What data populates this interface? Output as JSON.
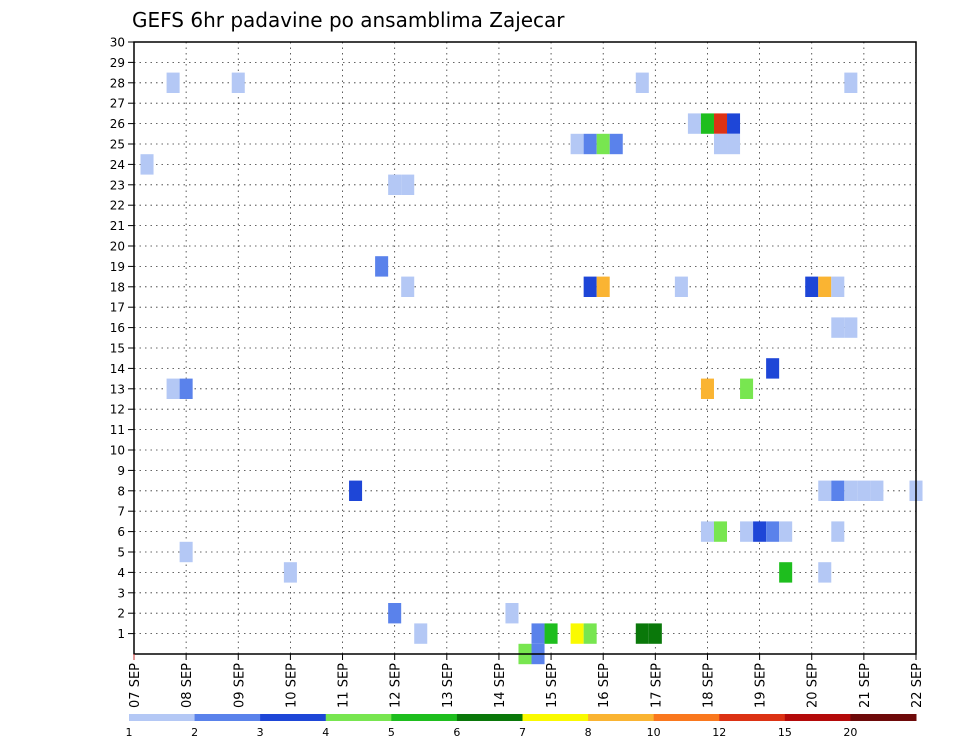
{
  "chart_data": {
    "type": "heatmap",
    "title": "GEFS 6hr padavine po ansamblima Zajecar",
    "xlabel": "",
    "ylabel": "",
    "y_range": [
      0,
      30
    ],
    "y_ticks": [
      "1",
      "2",
      "3",
      "4",
      "5",
      "6",
      "7",
      "8",
      "9",
      "10",
      "11",
      "12",
      "13",
      "14",
      "15",
      "16",
      "17",
      "18",
      "19",
      "20",
      "21",
      "22",
      "23",
      "24",
      "25",
      "26",
      "27",
      "28",
      "29",
      "30"
    ],
    "x_range_days": [
      0,
      15
    ],
    "x_ticks": [
      "07 SEP",
      "08 SEP",
      "09 SEP",
      "10 SEP",
      "11 SEP",
      "12 SEP",
      "13 SEP",
      "14 SEP",
      "15 SEP",
      "16 SEP",
      "17 SEP",
      "18 SEP",
      "19 SEP",
      "20 SEP",
      "21 SEP",
      "22 SEP"
    ],
    "grid": true,
    "legend": {
      "placement": "bottom",
      "labels": [
        "1",
        "2",
        "3",
        "4",
        "5",
        "6",
        "7",
        "8",
        "10",
        "12",
        "15",
        "20"
      ],
      "colors": [
        "#b4c8f5",
        "#5a82eb",
        "#1e46d7",
        "#78e650",
        "#1ebe1e",
        "#0a780a",
        "#fafa00",
        "#fab432",
        "#fa781e",
        "#dc3214",
        "#b40a0a",
        "#6e0a0a"
      ]
    },
    "cells": [
      {
        "day": 0.25,
        "member": 24,
        "color": "#b4c8f5"
      },
      {
        "day": 0.75,
        "member": 28,
        "color": "#b4c8f5"
      },
      {
        "day": 0.75,
        "member": 13,
        "color": "#b4c8f5"
      },
      {
        "day": 1.0,
        "member": 13,
        "color": "#5a82eb"
      },
      {
        "day": 1.0,
        "member": 5,
        "color": "#b4c8f5"
      },
      {
        "day": 2.0,
        "member": 28,
        "color": "#b4c8f5"
      },
      {
        "day": 3.0,
        "member": 4,
        "color": "#b4c8f5"
      },
      {
        "day": 4.25,
        "member": 8,
        "color": "#1e46d7"
      },
      {
        "day": 4.75,
        "member": 19,
        "color": "#5a82eb"
      },
      {
        "day": 5.0,
        "member": 23,
        "color": "#b4c8f5"
      },
      {
        "day": 5.25,
        "member": 23,
        "color": "#b4c8f5"
      },
      {
        "day": 5.0,
        "member": 2,
        "color": "#5a82eb"
      },
      {
        "day": 5.25,
        "member": 18,
        "color": "#b4c8f5"
      },
      {
        "day": 5.5,
        "member": 1,
        "color": "#b4c8f5"
      },
      {
        "day": 7.25,
        "member": 2,
        "color": "#b4c8f5"
      },
      {
        "day": 7.5,
        "member": 0,
        "color": "#78e650"
      },
      {
        "day": 7.75,
        "member": 1,
        "color": "#5a82eb"
      },
      {
        "day": 7.75,
        "member": 0,
        "color": "#5a82eb"
      },
      {
        "day": 8.0,
        "member": 1,
        "color": "#1ebe1e"
      },
      {
        "day": 8.5,
        "member": 25,
        "color": "#b4c8f5"
      },
      {
        "day": 8.5,
        "member": 1,
        "color": "#fafa00"
      },
      {
        "day": 8.75,
        "member": 25,
        "color": "#5a82eb"
      },
      {
        "day": 8.75,
        "member": 18,
        "color": "#1e46d7"
      },
      {
        "day": 8.75,
        "member": 1,
        "color": "#78e650"
      },
      {
        "day": 9.0,
        "member": 25,
        "color": "#78e650"
      },
      {
        "day": 9.0,
        "member": 18,
        "color": "#fab432"
      },
      {
        "day": 9.25,
        "member": 25,
        "color": "#5a82eb"
      },
      {
        "day": 9.75,
        "member": 28,
        "color": "#b4c8f5"
      },
      {
        "day": 9.75,
        "member": 1,
        "color": "#0a780a"
      },
      {
        "day": 10.0,
        "member": 1,
        "color": "#0a780a"
      },
      {
        "day": 10.5,
        "member": 18,
        "color": "#b4c8f5"
      },
      {
        "day": 10.75,
        "member": 26,
        "color": "#b4c8f5"
      },
      {
        "day": 11.0,
        "member": 26,
        "color": "#1ebe1e"
      },
      {
        "day": 11.0,
        "member": 13,
        "color": "#fab432"
      },
      {
        "day": 11.0,
        "member": 6,
        "color": "#b4c8f5"
      },
      {
        "day": 11.25,
        "member": 26,
        "color": "#dc3214"
      },
      {
        "day": 11.25,
        "member": 25,
        "color": "#b4c8f5"
      },
      {
        "day": 11.25,
        "member": 6,
        "color": "#78e650"
      },
      {
        "day": 11.5,
        "member": 26,
        "color": "#1e46d7"
      },
      {
        "day": 11.5,
        "member": 25,
        "color": "#b4c8f5"
      },
      {
        "day": 11.75,
        "member": 13,
        "color": "#78e650"
      },
      {
        "day": 11.75,
        "member": 6,
        "color": "#b4c8f5"
      },
      {
        "day": 12.0,
        "member": 6,
        "color": "#1e46d7"
      },
      {
        "day": 12.25,
        "member": 14,
        "color": "#1e46d7"
      },
      {
        "day": 12.25,
        "member": 6,
        "color": "#5a82eb"
      },
      {
        "day": 12.5,
        "member": 6,
        "color": "#b4c8f5"
      },
      {
        "day": 12.5,
        "member": 4,
        "color": "#1ebe1e"
      },
      {
        "day": 13.0,
        "member": 18,
        "color": "#1e46d7"
      },
      {
        "day": 13.25,
        "member": 18,
        "color": "#fab432"
      },
      {
        "day": 13.5,
        "member": 18,
        "color": "#b4c8f5"
      },
      {
        "day": 13.25,
        "member": 8,
        "color": "#b4c8f5"
      },
      {
        "day": 13.5,
        "member": 8,
        "color": "#5a82eb"
      },
      {
        "day": 13.5,
        "member": 6,
        "color": "#b4c8f5"
      },
      {
        "day": 13.25,
        "member": 4,
        "color": "#b4c8f5"
      },
      {
        "day": 13.5,
        "member": 16,
        "color": "#b4c8f5"
      },
      {
        "day": 13.75,
        "member": 16,
        "color": "#b4c8f5"
      },
      {
        "day": 13.75,
        "member": 28,
        "color": "#b4c8f5"
      },
      {
        "day": 13.75,
        "member": 8,
        "color": "#b4c8f5"
      },
      {
        "day": 14.0,
        "member": 8,
        "color": "#b4c8f5"
      },
      {
        "day": 14.25,
        "member": 8,
        "color": "#b4c8f5"
      },
      {
        "day": 15.0,
        "member": 8,
        "color": "#b4c8f5"
      }
    ]
  }
}
